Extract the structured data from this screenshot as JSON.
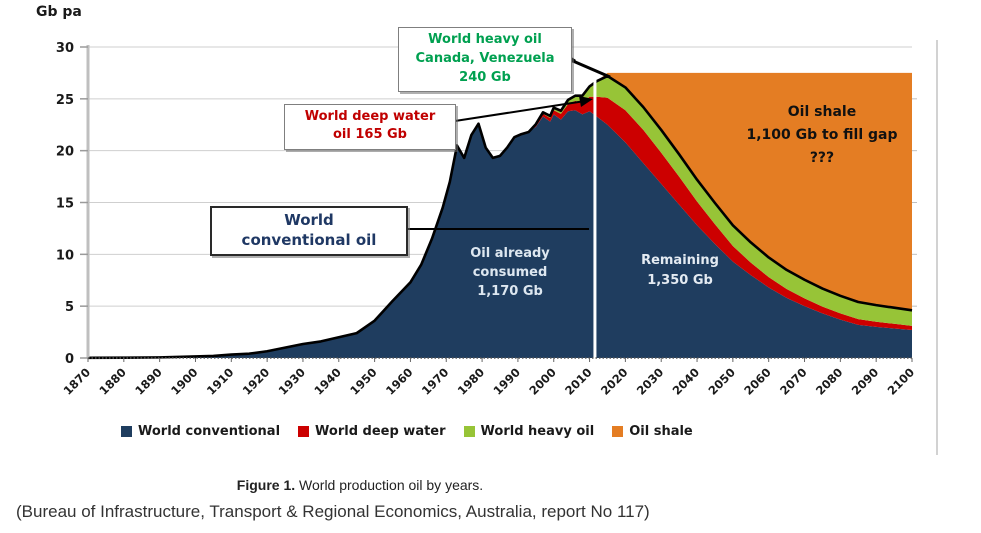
{
  "figure": {
    "y_axis_unit": "Gb pa",
    "caption_prefix": "Figure 1.",
    "caption_text": " World production oil by years.",
    "source": "(Bureau of Infrastructure, Transport & Regional Economics, Australia, report No 117)"
  },
  "annotations": {
    "heavy_oil": {
      "color": "#00A050",
      "lines": [
        "World heavy oil",
        "Canada, Venezuela",
        "240 Gb"
      ]
    },
    "deep_water": {
      "color": "#C00000",
      "lines": [
        "World deep water",
        "oil 165 Gb"
      ]
    },
    "conventional": {
      "color": "#1F3864",
      "lines": [
        "World",
        "conventional oil"
      ]
    },
    "consumed": {
      "lines": [
        "Oil already",
        "consumed",
        "1,170 Gb"
      ]
    },
    "remaining": {
      "lines": [
        "Remaining",
        "1,350 Gb"
      ]
    },
    "oil_shale": {
      "lines": [
        "Oil shale",
        "1,100 Gb to fill gap",
        "???"
      ]
    }
  },
  "chart_data": {
    "type": "area",
    "stacked": true,
    "title": "World production oil by years",
    "ylabel": "Gb pa",
    "ylim": [
      0,
      30
    ],
    "yticks": [
      0,
      5,
      10,
      15,
      20,
      25,
      30
    ],
    "xticks": [
      1870,
      1880,
      1890,
      1900,
      1910,
      1920,
      1930,
      1940,
      1950,
      1960,
      1970,
      1980,
      1990,
      2000,
      2010,
      2020,
      2030,
      2040,
      2050,
      2060,
      2070,
      2080,
      2090,
      2100
    ],
    "grid": "horizontal",
    "legend_position": "bottom",
    "divider_year": 2011.5,
    "outline_color": "#000000",
    "shale_gap_top": 27.5,
    "x": [
      1870,
      1880,
      1890,
      1900,
      1905,
      1910,
      1915,
      1920,
      1925,
      1930,
      1935,
      1940,
      1945,
      1950,
      1955,
      1960,
      1963,
      1966,
      1969,
      1971,
      1973,
      1975,
      1977,
      1979,
      1981,
      1983,
      1985,
      1987,
      1989,
      1991,
      1993,
      1995,
      1997,
      1999,
      2000,
      2002,
      2004,
      2006,
      2008,
      2010,
      2012,
      2015,
      2020,
      2025,
      2030,
      2035,
      2040,
      2045,
      2050,
      2055,
      2060,
      2065,
      2070,
      2075,
      2080,
      2085,
      2090,
      2095,
      2100
    ],
    "series": [
      {
        "name": "World conventional",
        "color": "#1F3D5F",
        "values": [
          0.02,
          0.03,
          0.06,
          0.15,
          0.2,
          0.33,
          0.42,
          0.65,
          1.0,
          1.35,
          1.6,
          2.0,
          2.4,
          3.6,
          5.5,
          7.3,
          9.0,
          11.5,
          14.5,
          17.0,
          20.5,
          19.3,
          21.5,
          22.6,
          20.3,
          19.3,
          19.5,
          20.3,
          21.3,
          21.6,
          21.8,
          22.3,
          23.3,
          22.8,
          23.5,
          23.0,
          23.8,
          23.9,
          23.5,
          23.8,
          23.3,
          22.5,
          20.8,
          18.8,
          16.8,
          14.8,
          12.8,
          11.0,
          9.3,
          8.0,
          6.8,
          5.8,
          5.0,
          4.3,
          3.7,
          3.2,
          3.0,
          2.85,
          2.7
        ]
      },
      {
        "name": "World deep water",
        "color": "#CC0000",
        "values": [
          0,
          0,
          0,
          0,
          0,
          0,
          0,
          0,
          0,
          0,
          0,
          0,
          0,
          0,
          0,
          0,
          0,
          0,
          0,
          0,
          0,
          0,
          0,
          0,
          0,
          0,
          0,
          0,
          0,
          0,
          0,
          0.15,
          0.25,
          0.35,
          0.4,
          0.55,
          0.7,
          0.9,
          1.1,
          1.4,
          1.9,
          2.6,
          3.1,
          3.2,
          3.0,
          2.7,
          2.3,
          1.9,
          1.5,
          1.2,
          1.0,
          0.85,
          0.75,
          0.65,
          0.6,
          0.55,
          0.5,
          0.45,
          0.4
        ]
      },
      {
        "name": "World heavy oil",
        "color": "#97C437",
        "values": [
          0,
          0,
          0,
          0,
          0,
          0,
          0,
          0,
          0,
          0,
          0,
          0,
          0,
          0,
          0,
          0,
          0,
          0,
          0,
          0,
          0,
          0,
          0,
          0,
          0,
          0,
          0,
          0,
          0,
          0,
          0,
          0.1,
          0.15,
          0.2,
          0.25,
          0.3,
          0.4,
          0.5,
          0.7,
          1.0,
          1.5,
          2.1,
          2.2,
          2.2,
          2.2,
          2.15,
          2.1,
          2.05,
          2.0,
          1.95,
          1.9,
          1.85,
          1.8,
          1.75,
          1.7,
          1.65,
          1.6,
          1.55,
          1.5
        ]
      },
      {
        "name": "Oil shale",
        "color": "#E47D23",
        "values": [
          0,
          0,
          0,
          0,
          0,
          0,
          0,
          0,
          0,
          0,
          0,
          0,
          0,
          0,
          0,
          0,
          0,
          0,
          0,
          0,
          0,
          0,
          0,
          0,
          0,
          0,
          0,
          0,
          0,
          0,
          0,
          0,
          0,
          0,
          0,
          0,
          0,
          0,
          0,
          0,
          0,
          0.3,
          1.4,
          3.3,
          5.5,
          7.85,
          10.3,
          12.55,
          14.7,
          16.35,
          17.8,
          19.0,
          19.95,
          20.8,
          21.5,
          22.1,
          22.4,
          22.65,
          22.9
        ]
      }
    ]
  }
}
